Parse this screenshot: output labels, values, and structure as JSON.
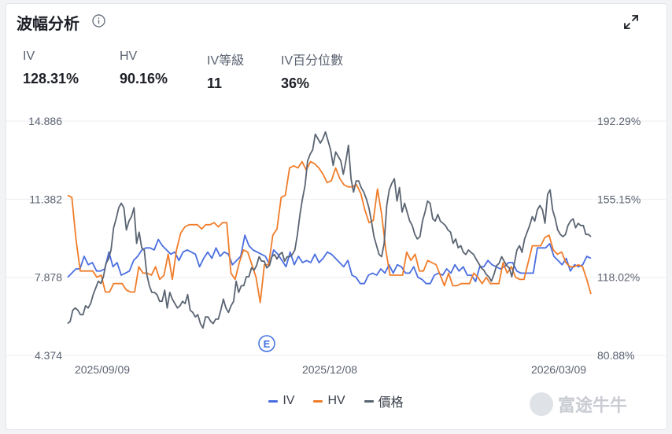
{
  "header": {
    "title": "波幅分析"
  },
  "metrics": [
    {
      "label": "IV",
      "value": "128.31%"
    },
    {
      "label": "HV",
      "value": "90.16%"
    },
    {
      "label": "IV等級",
      "value": "11"
    },
    {
      "label": "IV百分位數",
      "value": "36%"
    }
  ],
  "watermark": {
    "text": "富途牛牛"
  },
  "colors": {
    "iv": "#4a6ee0",
    "hv": "#f07d2a",
    "price": "#5a6472",
    "marker": "#3d6fe0"
  },
  "chart_data": {
    "type": "line",
    "left_axis": {
      "ticks": [
        "14.886",
        "11.382",
        "7.878",
        "4.374"
      ],
      "range": [
        4.374,
        14.886
      ]
    },
    "right_axis": {
      "ticks": [
        "192.29%",
        "155.15%",
        "118.02%",
        "80.88%"
      ],
      "range": [
        80.88,
        192.29
      ]
    },
    "x_ticks": [
      "2025/09/09",
      "2025/12/08",
      "2026/03/09"
    ],
    "marker": {
      "label": "E",
      "index": 36
    },
    "series": [
      {
        "name": "IV",
        "axis": "right",
        "values": [
          118.0,
          120.0,
          122.0,
          122.0,
          128.0,
          124.0,
          125.0,
          121.0,
          121.0,
          122.0,
          130.0,
          123.0,
          125.0,
          119.0,
          120.0,
          121.0,
          126.0,
          128.0,
          131.0,
          132.0,
          132.0,
          131.0,
          136.0,
          133.0,
          131.0,
          129.0,
          130.0,
          126.0,
          130.0,
          131.0,
          130.0,
          129.0,
          123.0,
          127.0,
          130.0,
          127.0,
          132.0,
          128.0,
          130.0,
          129.0,
          124.0,
          126.0,
          128.0,
          138.0,
          133.0,
          131.0,
          130.0,
          129.0,
          128.0,
          124.0,
          131.0,
          129.0,
          126.0,
          123.0,
          130.0,
          124.0,
          128.0,
          125.0,
          126.0,
          125.0,
          129.0,
          125.0,
          127.0,
          130.0,
          129.0,
          127.0,
          125.0,
          123.0,
          126.0,
          119.0,
          118.0,
          115.0,
          115.0,
          119.0,
          120.0,
          119.0,
          122.0,
          120.0,
          124.0,
          120.0,
          124.0,
          123.0,
          120.0,
          120.0,
          123.0,
          118.0,
          117.0,
          115.0,
          115.0,
          119.0,
          120.0,
          119.0,
          122.0,
          120.0,
          124.0,
          121.0,
          123.0,
          119.0,
          119.0,
          116.0,
          123.0,
          123.0,
          126.0,
          124.0,
          123.0,
          122.0,
          123.0,
          125.0,
          125.0,
          121.0,
          120.0,
          120.0,
          120.0,
          120.0,
          132.0,
          132.0,
          132.0,
          134.0,
          128.0,
          126.0,
          124.0,
          127.0,
          121.0,
          124.0,
          123.0,
          124.0,
          128.0,
          127.0
        ]
      },
      {
        "name": "HV",
        "axis": "right",
        "values": [
          157.0,
          156.0,
          136.0,
          121.0,
          121.0,
          121.0,
          121.0,
          118.0,
          119.0,
          111.0,
          111.0,
          115.0,
          115.0,
          115.0,
          112.0,
          111.0,
          111.0,
          123.0,
          120.0,
          120.0,
          119.0,
          123.0,
          117.0,
          119.0,
          129.0,
          117.0,
          131.0,
          139.0,
          142.0,
          143.0,
          143.0,
          143.0,
          141.0,
          143.0,
          143.0,
          144.0,
          142.0,
          144.0,
          144.0,
          120.0,
          117.0,
          125.0,
          131.0,
          130.0,
          124.0,
          118.0,
          106.0,
          124.0,
          124.0,
          138.0,
          141.0,
          156.0,
          157.0,
          170.0,
          171.0,
          170.0,
          173.0,
          169.0,
          173.0,
          172.0,
          170.0,
          167.0,
          163.0,
          164.0,
          170.0,
          165.0,
          162.0,
          161.0,
          161.0,
          162.0,
          158.0,
          150.0,
          144.0,
          145.0,
          160.0,
          148.0,
          131.0,
          119.0,
          119.0,
          119.0,
          119.0,
          130.0,
          126.0,
          129.0,
          121.0,
          121.0,
          126.0,
          125.0,
          124.0,
          119.0,
          114.0,
          120.0,
          114.0,
          114.0,
          115.0,
          115.0,
          115.0,
          120.0,
          118.0,
          115.0,
          118.0,
          115.0,
          115.0,
          115.0,
          125.0,
          120.0,
          123.0,
          118.0,
          117.0,
          117.0,
          125.0,
          133.0,
          133.0,
          133.0,
          137.0,
          138.0,
          131.0,
          129.0,
          130.0,
          125.0,
          123.0,
          123.0,
          124.0,
          123.0,
          117.0,
          110.0
        ]
      },
      {
        "name": "價格",
        "axis": "left",
        "values": [
          5.8,
          5.9,
          6.4,
          6.5,
          6.4,
          6.2,
          6.2,
          6.6,
          6.5,
          6.7,
          7.1,
          7.4,
          7.7,
          7.6,
          7.9,
          8.5,
          8.7,
          9.1,
          10.1,
          10.5,
          11.0,
          11.2,
          11.0,
          10.0,
          10.4,
          10.6,
          11.0,
          9.4,
          9.9,
          9.2,
          9.1,
          8.0,
          7.5,
          7.2,
          7.2,
          7.1,
          6.8,
          6.8,
          7.3,
          6.5,
          7.2,
          6.9,
          6.7,
          6.5,
          6.6,
          6.8,
          6.7,
          7.1,
          6.4,
          6.3,
          6.1,
          6.2,
          5.8,
          5.6,
          6.1,
          6.1,
          5.9,
          5.8,
          6.0,
          6.0,
          6.4,
          6.9,
          6.5,
          6.3,
          6.6,
          6.8,
          7.7,
          7.2,
          7.5,
          7.5,
          7.9,
          7.9,
          8.3,
          8.2,
          8.4,
          8.8,
          8.6,
          8.6,
          8.3,
          8.4,
          8.8,
          8.9,
          8.7,
          8.9,
          9.0,
          8.6,
          8.8,
          8.8,
          8.9,
          9.1,
          9.8,
          10.7,
          11.4,
          12.0,
          13.1,
          13.4,
          13.6,
          14.3,
          14.1,
          13.9,
          14.1,
          14.4,
          14.0,
          13.6,
          12.9,
          13.5,
          13.3,
          13.1,
          12.5,
          13.1,
          13.8,
          12.3,
          11.7,
          12.2,
          12.2,
          11.9,
          11.7,
          11.4,
          11.0,
          10.4,
          9.7,
          9.3,
          8.9,
          8.8,
          9.4,
          11.1,
          11.8,
          12.1,
          12.3,
          11.3,
          11.9,
          10.8,
          11.2,
          10.8,
          10.4,
          10.2,
          9.8,
          9.6,
          9.7,
          10.4,
          10.8,
          11.3,
          11.2,
          10.5,
          10.4,
          10.7,
          10.4,
          10.3,
          10.2,
          10.0,
          9.9,
          9.4,
          9.6,
          9.2,
          9.3,
          9.0,
          8.9,
          9.1,
          9.0,
          8.9,
          8.7,
          8.5,
          8.3,
          8.2,
          8.0,
          7.9,
          7.7,
          8.0,
          8.4,
          8.5,
          8.8,
          8.6,
          8.4,
          8.3,
          7.9,
          8.5,
          9.1,
          9.3,
          9.0,
          9.6,
          9.9,
          10.2,
          10.6,
          10.4,
          10.9,
          11.1,
          10.9,
          10.3,
          11.6,
          11.8,
          10.9,
          10.5,
          10.0,
          9.8,
          9.7,
          9.8,
          10.2,
          10.4,
          10.5,
          10.1,
          10.3,
          10.2,
          10.2,
          9.8,
          9.8,
          9.7
        ]
      }
    ]
  }
}
